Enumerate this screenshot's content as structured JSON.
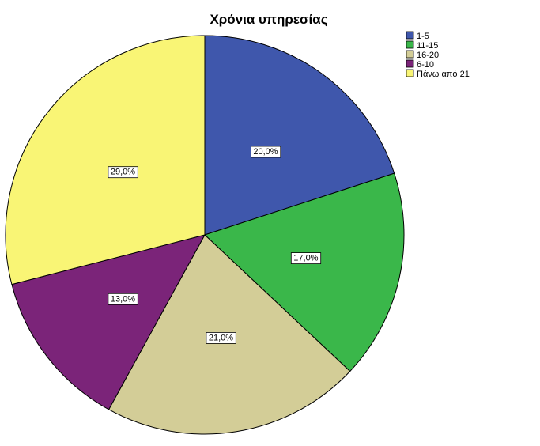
{
  "chart_data": {
    "type": "pie",
    "title": "Χρόνια υπηρεσίας",
    "legend_position": "top-right",
    "slices": [
      {
        "name": "1-5",
        "value": 20.0,
        "label": "20,0%",
        "color": "#3F57AC"
      },
      {
        "name": "11-15",
        "value": 17.0,
        "label": "17,0%",
        "color": "#3AB74A"
      },
      {
        "name": "16-20",
        "value": 21.0,
        "label": "21,0%",
        "color": "#D3CD97"
      },
      {
        "name": "6-10",
        "value": 13.0,
        "label": "13,0%",
        "color": "#7B2479"
      },
      {
        "name": "Πάνω από 21",
        "value": 29.0,
        "label": "29,0%",
        "color": "#F9F575"
      }
    ]
  }
}
